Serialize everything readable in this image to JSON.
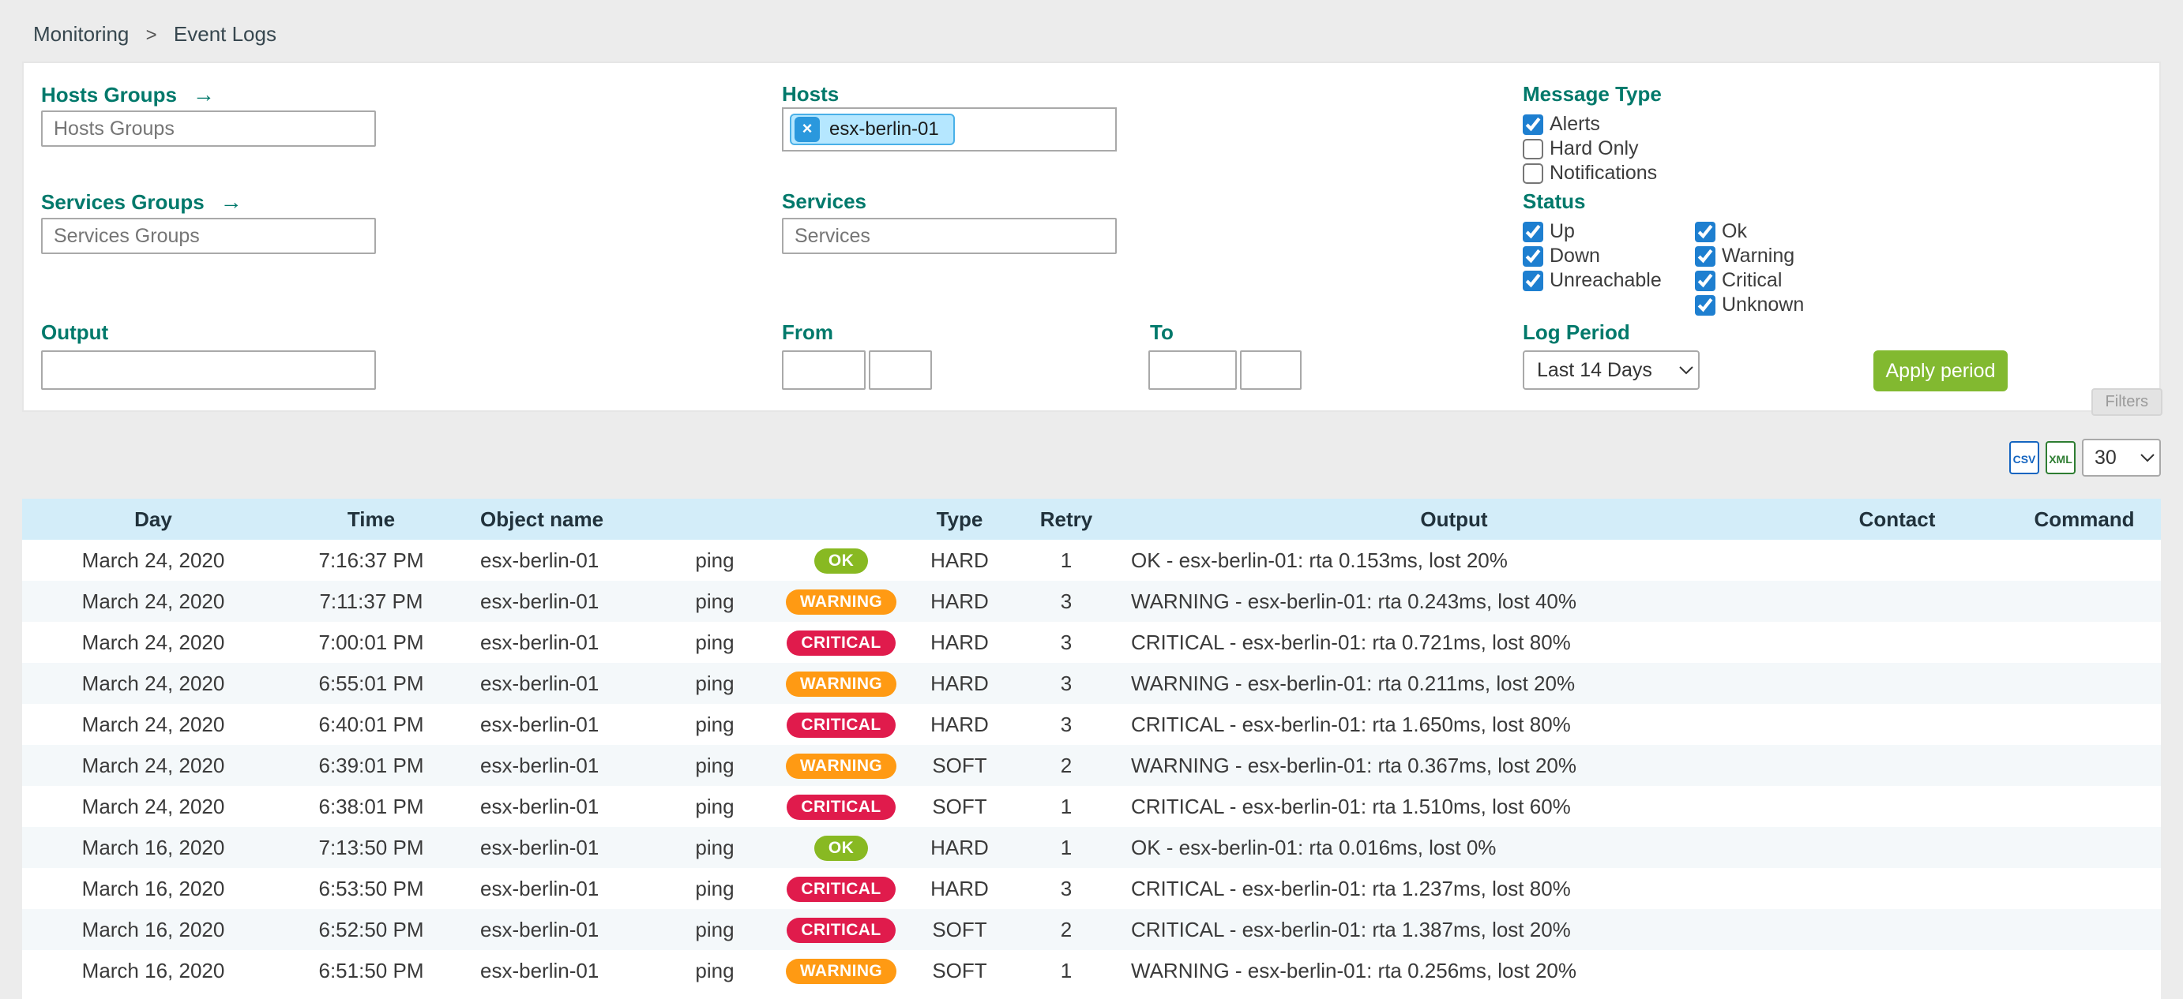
{
  "breadcrumb": {
    "items": [
      "Monitoring",
      "Event Logs"
    ],
    "separator": ">"
  },
  "filters": {
    "hosts_groups": {
      "label": "Hosts Groups",
      "placeholder": "Hosts Groups",
      "arrow": "→"
    },
    "services_groups": {
      "label": "Services Groups",
      "placeholder": "Services Groups",
      "arrow": "→"
    },
    "output": {
      "label": "Output",
      "value": ""
    },
    "hosts": {
      "label": "Hosts",
      "chip": "esx-berlin-01",
      "chip_remove": "×"
    },
    "services": {
      "label": "Services",
      "placeholder": "Services"
    },
    "from": {
      "label": "From",
      "date_value": "",
      "time_value": ""
    },
    "to": {
      "label": "To",
      "date_value": "",
      "time_value": ""
    },
    "message_type": {
      "label": "Message Type",
      "options": [
        {
          "label": "Alerts",
          "checked": true
        },
        {
          "label": "Hard Only",
          "checked": false
        },
        {
          "label": "Notifications",
          "checked": false
        }
      ]
    },
    "status": {
      "label": "Status",
      "col1": [
        {
          "label": "Up",
          "checked": true
        },
        {
          "label": "Down",
          "checked": true
        },
        {
          "label": "Unreachable",
          "checked": true
        }
      ],
      "col2": [
        {
          "label": "Ok",
          "checked": true
        },
        {
          "label": "Warning",
          "checked": true
        },
        {
          "label": "Critical",
          "checked": true
        },
        {
          "label": "Unknown",
          "checked": true
        }
      ]
    },
    "log_period": {
      "label": "Log Period",
      "value": "Last 14 Days"
    },
    "apply_button": "Apply period",
    "filters_tab": "Filters"
  },
  "toolbar": {
    "export_csv_label": "CSV",
    "export_xml_label": "XML",
    "page_size": "30"
  },
  "table": {
    "headers": [
      "Day",
      "Time",
      "Object name",
      "",
      "",
      "Type",
      "Retry",
      "Output",
      "Contact",
      "Command"
    ],
    "rows": [
      {
        "day": "March 24, 2020",
        "time": "7:16:37 PM",
        "object": "esx-berlin-01",
        "service": "ping",
        "status": "OK",
        "type": "HARD",
        "retry": "1",
        "output": "OK - esx-berlin-01: rta 0.153ms, lost 20%",
        "contact": "",
        "command": ""
      },
      {
        "day": "March 24, 2020",
        "time": "7:11:37 PM",
        "object": "esx-berlin-01",
        "service": "ping",
        "status": "WARNING",
        "type": "HARD",
        "retry": "3",
        "output": "WARNING - esx-berlin-01: rta 0.243ms, lost 40%",
        "contact": "",
        "command": ""
      },
      {
        "day": "March 24, 2020",
        "time": "7:00:01 PM",
        "object": "esx-berlin-01",
        "service": "ping",
        "status": "CRITICAL",
        "type": "HARD",
        "retry": "3",
        "output": "CRITICAL - esx-berlin-01: rta 0.721ms, lost 80%",
        "contact": "",
        "command": ""
      },
      {
        "day": "March 24, 2020",
        "time": "6:55:01 PM",
        "object": "esx-berlin-01",
        "service": "ping",
        "status": "WARNING",
        "type": "HARD",
        "retry": "3",
        "output": "WARNING - esx-berlin-01: rta 0.211ms, lost 20%",
        "contact": "",
        "command": ""
      },
      {
        "day": "March 24, 2020",
        "time": "6:40:01 PM",
        "object": "esx-berlin-01",
        "service": "ping",
        "status": "CRITICAL",
        "type": "HARD",
        "retry": "3",
        "output": "CRITICAL - esx-berlin-01: rta 1.650ms, lost 80%",
        "contact": "",
        "command": ""
      },
      {
        "day": "March 24, 2020",
        "time": "6:39:01 PM",
        "object": "esx-berlin-01",
        "service": "ping",
        "status": "WARNING",
        "type": "SOFT",
        "retry": "2",
        "output": "WARNING - esx-berlin-01: rta 0.367ms, lost 20%",
        "contact": "",
        "command": ""
      },
      {
        "day": "March 24, 2020",
        "time": "6:38:01 PM",
        "object": "esx-berlin-01",
        "service": "ping",
        "status": "CRITICAL",
        "type": "SOFT",
        "retry": "1",
        "output": "CRITICAL - esx-berlin-01: rta 1.510ms, lost 60%",
        "contact": "",
        "command": ""
      },
      {
        "day": "March 16, 2020",
        "time": "7:13:50 PM",
        "object": "esx-berlin-01",
        "service": "ping",
        "status": "OK",
        "type": "HARD",
        "retry": "1",
        "output": "OK - esx-berlin-01: rta 0.016ms, lost 0%",
        "contact": "",
        "command": ""
      },
      {
        "day": "March 16, 2020",
        "time": "6:53:50 PM",
        "object": "esx-berlin-01",
        "service": "ping",
        "status": "CRITICAL",
        "type": "HARD",
        "retry": "3",
        "output": "CRITICAL - esx-berlin-01: rta 1.237ms, lost 80%",
        "contact": "",
        "command": ""
      },
      {
        "day": "March 16, 2020",
        "time": "6:52:50 PM",
        "object": "esx-berlin-01",
        "service": "ping",
        "status": "CRITICAL",
        "type": "SOFT",
        "retry": "2",
        "output": "CRITICAL - esx-berlin-01: rta 1.387ms, lost 20%",
        "contact": "",
        "command": ""
      },
      {
        "day": "March 16, 2020",
        "time": "6:51:50 PM",
        "object": "esx-berlin-01",
        "service": "ping",
        "status": "WARNING",
        "type": "SOFT",
        "retry": "1",
        "output": "WARNING - esx-berlin-01: rta 0.256ms, lost 20%",
        "contact": "",
        "command": ""
      }
    ]
  },
  "colors": {
    "accent_teal": "#00796B",
    "apply_green": "#82B930",
    "checkbox_blue": "#1E7FD0",
    "table_header_bg": "#D3EDF9",
    "ok_badge": "#88B922",
    "warning_badge": "#FF9A13",
    "critical_badge": "#E01B4C",
    "chip_bg": "#B5E7FF",
    "chip_border": "#49B0E8"
  }
}
